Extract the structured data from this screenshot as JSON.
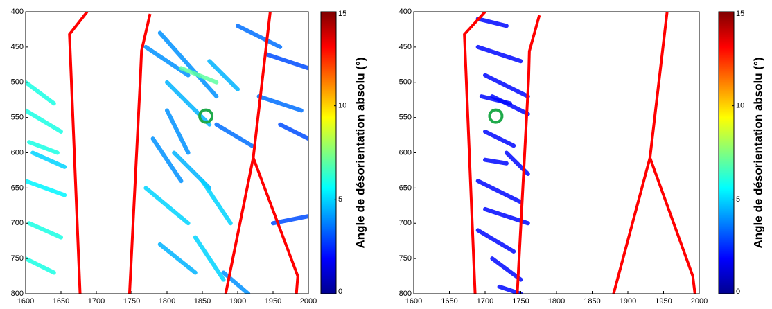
{
  "chart_data": [
    {
      "type": "map",
      "xlim": [
        1600,
        2000
      ],
      "xticks": [
        1600,
        1650,
        1700,
        1750,
        1800,
        1850,
        1900,
        1950,
        2000
      ],
      "ylim": [
        400,
        800
      ],
      "y_inverted": true,
      "yticks": [
        400,
        450,
        500,
        550,
        600,
        650,
        700,
        750,
        800
      ],
      "colorbar": {
        "label": "Angle de désorientation absolu (°)",
        "lim": [
          0,
          15
        ],
        "ticks": [
          0,
          5,
          10,
          15
        ],
        "colormap": "jet"
      },
      "boundary_color": "#ff0000",
      "boundaries": [
        {
          "x": [
            1687,
            1662,
            1677
          ],
          "y": [
            400,
            432,
            800
          ]
        },
        {
          "x": [
            1776,
            1764,
            1762,
            1747
          ],
          "y": [
            403,
            455,
            500,
            800
          ]
        },
        {
          "x": [
            1946,
            1922,
            1883
          ],
          "y": [
            400,
            607,
            800
          ]
        },
        {
          "x": [
            1922,
            1985,
            1983
          ],
          "y": [
            607,
            775,
            800
          ]
        }
      ],
      "marker": {
        "x": 1855,
        "y": 548,
        "color": "#1faa4a"
      },
      "patches": [
        {
          "x": [
            1600,
            1640
          ],
          "y": [
            500,
            530
          ],
          "value": 6
        },
        {
          "x": [
            1600,
            1650
          ],
          "y": [
            540,
            570
          ],
          "value": 6
        },
        {
          "x": [
            1605,
            1645
          ],
          "y": [
            585,
            600
          ],
          "value": 6
        },
        {
          "x": [
            1600,
            1655
          ],
          "y": [
            640,
            660
          ],
          "value": 5.5
        },
        {
          "x": [
            1605,
            1650
          ],
          "y": [
            700,
            720
          ],
          "value": 6
        },
        {
          "x": [
            1600,
            1640
          ],
          "y": [
            750,
            770
          ],
          "value": 6
        },
        {
          "x": [
            1610,
            1655
          ],
          "y": [
            600,
            620
          ],
          "value": 5
        },
        {
          "x": [
            1790,
            1870
          ],
          "y": [
            430,
            520
          ],
          "value": 4
        },
        {
          "x": [
            1800,
            1860
          ],
          "y": [
            500,
            560
          ],
          "value": 4.5
        },
        {
          "x": [
            1770,
            1830
          ],
          "y": [
            450,
            490
          ],
          "value": 4
        },
        {
          "x": [
            1860,
            1900
          ],
          "y": [
            470,
            510
          ],
          "value": 4.5
        },
        {
          "x": [
            1780,
            1820
          ],
          "y": [
            580,
            640
          ],
          "value": 4
        },
        {
          "x": [
            1810,
            1860
          ],
          "y": [
            600,
            650
          ],
          "value": 4.5
        },
        {
          "x": [
            1850,
            1890
          ],
          "y": [
            640,
            700
          ],
          "value": 5
        },
        {
          "x": [
            1770,
            1830
          ],
          "y": [
            650,
            700
          ],
          "value": 5
        },
        {
          "x": [
            1840,
            1880
          ],
          "y": [
            720,
            780
          ],
          "value": 5
        },
        {
          "x": [
            1790,
            1840
          ],
          "y": [
            730,
            770
          ],
          "value": 4.5
        },
        {
          "x": [
            1900,
            1960
          ],
          "y": [
            420,
            450
          ],
          "value": 3.5
        },
        {
          "x": [
            1940,
            2000
          ],
          "y": [
            460,
            480
          ],
          "value": 3
        },
        {
          "x": [
            1960,
            2000
          ],
          "y": [
            560,
            580
          ],
          "value": 3
        },
        {
          "x": [
            1950,
            2000
          ],
          "y": [
            700,
            690
          ],
          "value": 3
        },
        {
          "x": [
            1870,
            1920
          ],
          "y": [
            560,
            590
          ],
          "value": 3.5
        },
        {
          "x": [
            1820,
            1870
          ],
          "y": [
            480,
            500
          ],
          "value": 7
        },
        {
          "x": [
            1930,
            1990
          ],
          "y": [
            520,
            540
          ],
          "value": 3.5
        },
        {
          "x": [
            1880,
            1915
          ],
          "y": [
            770,
            800
          ],
          "value": 4
        },
        {
          "x": [
            1800,
            1830
          ],
          "y": [
            540,
            600
          ],
          "value": 4
        }
      ]
    },
    {
      "type": "map",
      "xlim": [
        1600,
        2000
      ],
      "xticks": [
        1600,
        1650,
        1700,
        1750,
        1800,
        1850,
        1900,
        1950,
        2000
      ],
      "ylim": [
        400,
        800
      ],
      "y_inverted": true,
      "yticks": [
        400,
        450,
        500,
        550,
        600,
        650,
        700,
        750,
        800
      ],
      "colorbar": {
        "label": "Angle de désorientation absolu (°)",
        "lim": [
          0,
          15
        ],
        "ticks": [
          0,
          5,
          10,
          15
        ],
        "colormap": "jet"
      },
      "boundary_color": "#ff0000",
      "boundaries": [
        {
          "x": [
            1700,
            1671,
            1686
          ],
          "y": [
            400,
            432,
            800
          ]
        },
        {
          "x": [
            1776,
            1762,
            1761,
            1745
          ],
          "y": [
            405,
            456,
            494,
            800
          ]
        },
        {
          "x": [
            1955,
            1931,
            1880
          ],
          "y": [
            400,
            607,
            800
          ]
        },
        {
          "x": [
            1931,
            1991,
            1994
          ],
          "y": [
            607,
            775,
            800
          ]
        }
      ],
      "marker": {
        "x": 1715,
        "y": 548,
        "color": "#1faa4a"
      },
      "patches": [
        {
          "x": [
            1690,
            1730
          ],
          "y": [
            410,
            420
          ],
          "value": 2
        },
        {
          "x": [
            1690,
            1750
          ],
          "y": [
            450,
            470
          ],
          "value": 2
        },
        {
          "x": [
            1700,
            1760
          ],
          "y": [
            490,
            520
          ],
          "value": 2
        },
        {
          "x": [
            1710,
            1760
          ],
          "y": [
            520,
            545
          ],
          "value": 2
        },
        {
          "x": [
            1700,
            1740
          ],
          "y": [
            570,
            590
          ],
          "value": 2
        },
        {
          "x": [
            1730,
            1760
          ],
          "y": [
            600,
            630
          ],
          "value": 2
        },
        {
          "x": [
            1690,
            1750
          ],
          "y": [
            640,
            670
          ],
          "value": 2
        },
        {
          "x": [
            1700,
            1760
          ],
          "y": [
            680,
            700
          ],
          "value": 2
        },
        {
          "x": [
            1690,
            1740
          ],
          "y": [
            710,
            740
          ],
          "value": 2
        },
        {
          "x": [
            1710,
            1750
          ],
          "y": [
            750,
            780
          ],
          "value": 2
        },
        {
          "x": [
            1695,
            1735
          ],
          "y": [
            520,
            530
          ],
          "value": 2
        },
        {
          "x": [
            1720,
            1750
          ],
          "y": [
            790,
            800
          ],
          "value": 2
        },
        {
          "x": [
            1700,
            1730
          ],
          "y": [
            610,
            615
          ],
          "value": 2
        }
      ]
    }
  ]
}
